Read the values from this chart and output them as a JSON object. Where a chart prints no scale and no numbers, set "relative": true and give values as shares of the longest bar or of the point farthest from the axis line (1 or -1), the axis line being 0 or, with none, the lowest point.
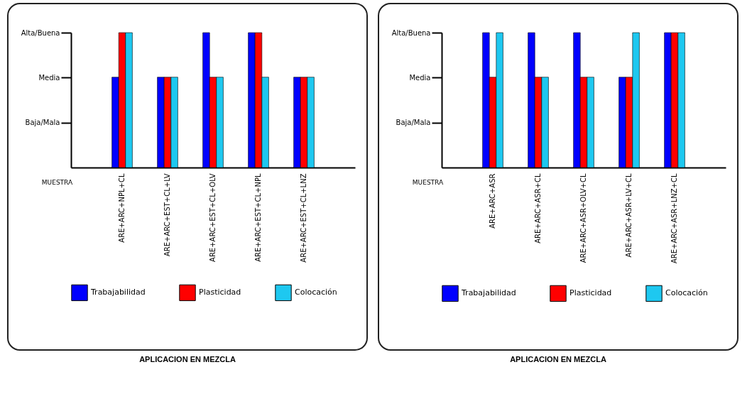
{
  "chart_data": [
    {
      "type": "bar",
      "xlabel": "MUESTRA",
      "relative": true,
      "categories": [
        "ARE+ARC+NPL+CL",
        "ARE+ARC+EST+CL+LV",
        "ARE+ARC+EST+CL+OLV",
        "ARE+ARC+EST+CL+NPL",
        "ARE+ARC+EST+CL+LNZ"
      ],
      "series": [
        {
          "name": "Trabajabilidad",
          "color": "#0000ff",
          "values": [
            0.67,
            0.67,
            1,
            1,
            0.67
          ]
        },
        {
          "name": "Plasticidad",
          "color": "#ff0000",
          "values": [
            1,
            0.67,
            0.67,
            1,
            0.67
          ]
        },
        {
          "name": "Colocación",
          "color": "#1ec8f0",
          "values": [
            1,
            0.67,
            0.67,
            0.67,
            0.67
          ]
        }
      ],
      "grid": false,
      "legend": "bottom",
      "annotations": [
        "Baja/Mala",
        "Media",
        "Alta/Buena",
        "APLICACION EN MEZCLA"
      ]
    },
    {
      "type": "bar",
      "xlabel": "MUESTRA",
      "relative": true,
      "categories": [
        "ARE+ARC+ASR",
        "ARE+ARC+ASR+CL",
        "ARE+ARC+ASR+OLV+CL",
        "ARE+ARC+ASR+LV+CL",
        "ARE+ARC+ASR+LNZ+CL"
      ],
      "series": [
        {
          "name": "Trabajabilidad",
          "color": "#0000ff",
          "values": [
            1,
            1,
            1,
            0.67,
            1
          ]
        },
        {
          "name": "Plasticidad",
          "color": "#ff0000",
          "values": [
            0.67,
            0.67,
            0.67,
            0.67,
            1
          ]
        },
        {
          "name": "Colocación",
          "color": "#1ec8f0",
          "values": [
            1,
            0.67,
            0.67,
            1,
            1
          ]
        }
      ],
      "grid": false,
      "legend": "bottom",
      "annotations": [
        "Baja/Mala",
        "Media",
        "Alta/Buena",
        "APLICACION EN MEZCLA"
      ]
    }
  ]
}
